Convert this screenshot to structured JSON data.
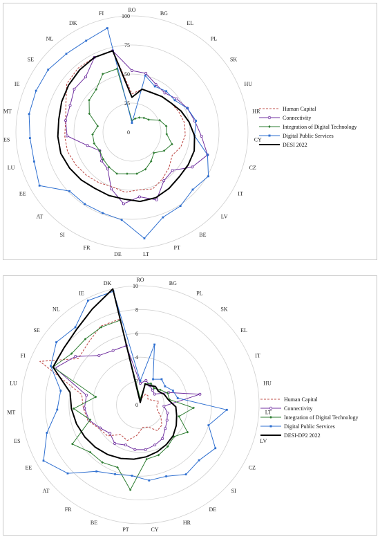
{
  "chart_data": [
    {
      "type": "radar",
      "categories": [
        "RO",
        "BG",
        "EL",
        "PL",
        "SK",
        "HU",
        "HR",
        "CY",
        "CZ",
        "IT",
        "LV",
        "BE",
        "PT",
        "LT",
        "DE",
        "FR",
        "SI",
        "AT",
        "EE",
        "LU",
        "ES",
        "MT",
        "IE",
        "SE",
        "NL",
        "DK",
        "FI"
      ],
      "rlim": [
        0,
        100
      ],
      "ticks": [
        "0",
        "25",
        "50",
        "75",
        "100"
      ],
      "tick_values": [
        0,
        25,
        50,
        75,
        100
      ],
      "legend_position": "right",
      "series": [
        {
          "name": "Human Capital",
          "color": "#c0504d",
          "dash": "3,2",
          "marker": "none",
          "width": 1.1,
          "values": [
            33,
            38,
            38,
            40,
            42,
            44,
            46,
            46,
            44,
            40,
            44,
            48,
            52,
            50,
            52,
            50,
            52,
            54,
            56,
            58,
            58,
            58,
            62,
            70,
            72,
            72,
            72
          ]
        },
        {
          "name": "Connectivity",
          "color": "#7030a0",
          "dash": "",
          "marker": "circle",
          "width": 1,
          "values": [
            53,
            52,
            46,
            44,
            48,
            52,
            55,
            60,
            68,
            60,
            48,
            50,
            62,
            56,
            62,
            52,
            38,
            36,
            32,
            40,
            56,
            58,
            58,
            62,
            62,
            72,
            72
          ]
        },
        {
          "name": "Integration of Digital Technology",
          "color": "#2e7d32",
          "dash": "",
          "marker": "diamond",
          "width": 1,
          "values": [
            10,
            12,
            14,
            16,
            18,
            26,
            30,
            30,
            36,
            32,
            26,
            30,
            34,
            36,
            36,
            38,
            36,
            34,
            32,
            34,
            34,
            30,
            40,
            46,
            48,
            56,
            56
          ]
        },
        {
          "name": "Digital Public Services",
          "color": "#2e6fd0",
          "dash": "",
          "marker": "square",
          "width": 1,
          "values": [
            8,
            50,
            44,
            46,
            46,
            52,
            56,
            54,
            68,
            76,
            72,
            76,
            78,
            92,
            76,
            74,
            74,
            74,
            92,
            88,
            88,
            90,
            90,
            90,
            88,
            88,
            92
          ]
        },
        {
          "name": "DESI 2022",
          "color": "#000000",
          "dash": "",
          "marker": "none",
          "width": 2,
          "values": [
            30,
            38,
            38,
            40,
            42,
            46,
            50,
            54,
            56,
            56,
            56,
            58,
            60,
            60,
            58,
            58,
            58,
            60,
            62,
            64,
            64,
            64,
            66,
            68,
            70,
            72,
            72
          ]
        }
      ]
    },
    {
      "type": "radar",
      "categories": [
        "RO",
        "BG",
        "PL",
        "SK",
        "EL",
        "IT",
        "HU",
        "LT",
        "LV",
        "CZ",
        "SI",
        "DE",
        "HR",
        "CY",
        "PT",
        "BE",
        "FR",
        "AT",
        "EE",
        "ES",
        "MT",
        "LU",
        "FI",
        "SE",
        "NL",
        "IE",
        "DK"
      ],
      "rlim": [
        0,
        10
      ],
      "ticks": [
        "0",
        "2",
        "4",
        "6",
        "8",
        "10"
      ],
      "tick_values": [
        0,
        2,
        4,
        6,
        8,
        10
      ],
      "legend_position": "right",
      "series": [
        {
          "name": "Human Capital",
          "color": "#c0504d",
          "dash": "3,2",
          "marker": "none",
          "width": 1.1,
          "values": [
            0.3,
            0.6,
            1.0,
            1.0,
            0.8,
            1.0,
            1.6,
            1.4,
            1.5,
            2.0,
            2.5,
            2.6,
            2.0,
            1.9,
            2.6,
            3.2,
            3.0,
            3.8,
            4.0,
            4.6,
            4.8,
            5.0,
            9.2,
            6.5,
            6.8,
            7.4,
            7.4
          ]
        },
        {
          "name": "Connectivity",
          "color": "#7030a0",
          "dash": "",
          "marker": "circle",
          "width": 1,
          "values": [
            1.8,
            2.1,
            1.8,
            1.6,
            1.5,
            2.6,
            5.1,
            2.0,
            2.4,
            2.6,
            2.9,
            3.4,
            3.6,
            3.8,
            3.8,
            3.6,
            3.9,
            3.5,
            3.9,
            4.5,
            4.7,
            4.6,
            7.8,
            6.8,
            5.4,
            5.1,
            5.1
          ]
        },
        {
          "name": "Integration of Digital Technology",
          "color": "#2e7d32",
          "dash": "",
          "marker": "diamond",
          "width": 1,
          "values": [
            0.5,
            1.8,
            2.0,
            1.8,
            2.1,
            2.5,
            2.5,
            4.5,
            3.4,
            4.6,
            3.9,
            4.2,
            4.5,
            4.6,
            7.2,
            5.6,
            5.8,
            5.8,
            6.6,
            4.4,
            5.6,
            3.8,
            8.0,
            7.2,
            7.2,
            7.3,
            7.3
          ]
        },
        {
          "name": "Digital Public Services",
          "color": "#2e6fd0",
          "dash": "",
          "marker": "square",
          "width": 1,
          "values": [
            2.0,
            5.2,
            2.4,
            2.8,
            2.6,
            3.0,
            3.2,
            7.3,
            6.0,
            7.3,
            6.8,
            7.0,
            6.4,
            6.4,
            6.0,
            6.2,
            6.7,
            8.4,
            9.4,
            8.2,
            7.0,
            6.8,
            8.2,
            8.8,
            8.5,
            9.8,
            9.8
          ]
        },
        {
          "name": "DESI-DP2 2022",
          "color": "#000000",
          "dash": "",
          "marker": "none",
          "width": 2,
          "values": [
            0.2,
            1.8,
            1.8,
            2.0,
            1.9,
            2.2,
            2.4,
            3.0,
            3.2,
            3.5,
            3.8,
            4.0,
            4.2,
            4.4,
            4.6,
            4.8,
            5.0,
            5.2,
            5.4,
            5.6,
            5.8,
            6.0,
            8.0,
            8.0,
            8.3,
            9.0,
            10.0
          ]
        }
      ]
    }
  ]
}
